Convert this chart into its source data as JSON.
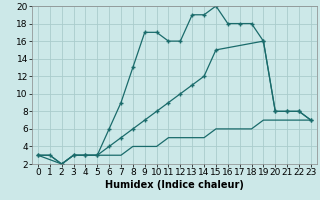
{
  "xlabel": "Humidex (Indice chaleur)",
  "bg_color": "#cce8e8",
  "grid_color": "#aacccc",
  "line_color": "#1a6b6b",
  "line1_x": [
    0,
    1,
    2,
    3,
    4,
    5,
    6,
    7,
    8,
    9,
    10,
    11,
    12,
    13,
    14,
    15,
    16,
    17,
    18,
    19,
    20,
    21,
    22,
    23
  ],
  "line1_y": [
    3,
    3,
    2,
    3,
    3,
    3,
    6,
    9,
    13,
    17,
    17,
    16,
    16,
    19,
    19,
    20,
    18,
    18,
    18,
    16,
    8,
    8,
    8,
    7
  ],
  "line2_x": [
    0,
    2,
    3,
    4,
    5,
    6,
    7,
    8,
    9,
    10,
    11,
    12,
    13,
    14,
    15,
    19,
    20,
    21,
    22,
    23
  ],
  "line2_y": [
    3,
    2,
    3,
    3,
    3,
    4,
    5,
    6,
    7,
    8,
    9,
    10,
    11,
    12,
    15,
    16,
    8,
    8,
    8,
    7
  ],
  "line3_x": [
    0,
    1,
    2,
    3,
    4,
    5,
    6,
    7,
    8,
    9,
    10,
    11,
    12,
    13,
    14,
    15,
    16,
    17,
    18,
    19,
    20,
    21,
    22,
    23
  ],
  "line3_y": [
    3,
    3,
    2,
    3,
    3,
    3,
    3,
    3,
    4,
    4,
    4,
    5,
    5,
    5,
    5,
    6,
    6,
    6,
    6,
    7,
    7,
    7,
    7,
    7
  ],
  "xlim": [
    -0.5,
    23.5
  ],
  "ylim": [
    2,
    20
  ],
  "xticks": [
    0,
    1,
    2,
    3,
    4,
    5,
    6,
    7,
    8,
    9,
    10,
    11,
    12,
    13,
    14,
    15,
    16,
    17,
    18,
    19,
    20,
    21,
    22,
    23
  ],
  "yticks": [
    2,
    4,
    6,
    8,
    10,
    12,
    14,
    16,
    18,
    20
  ],
  "xlabel_fontsize": 7,
  "tick_fontsize": 6.5
}
